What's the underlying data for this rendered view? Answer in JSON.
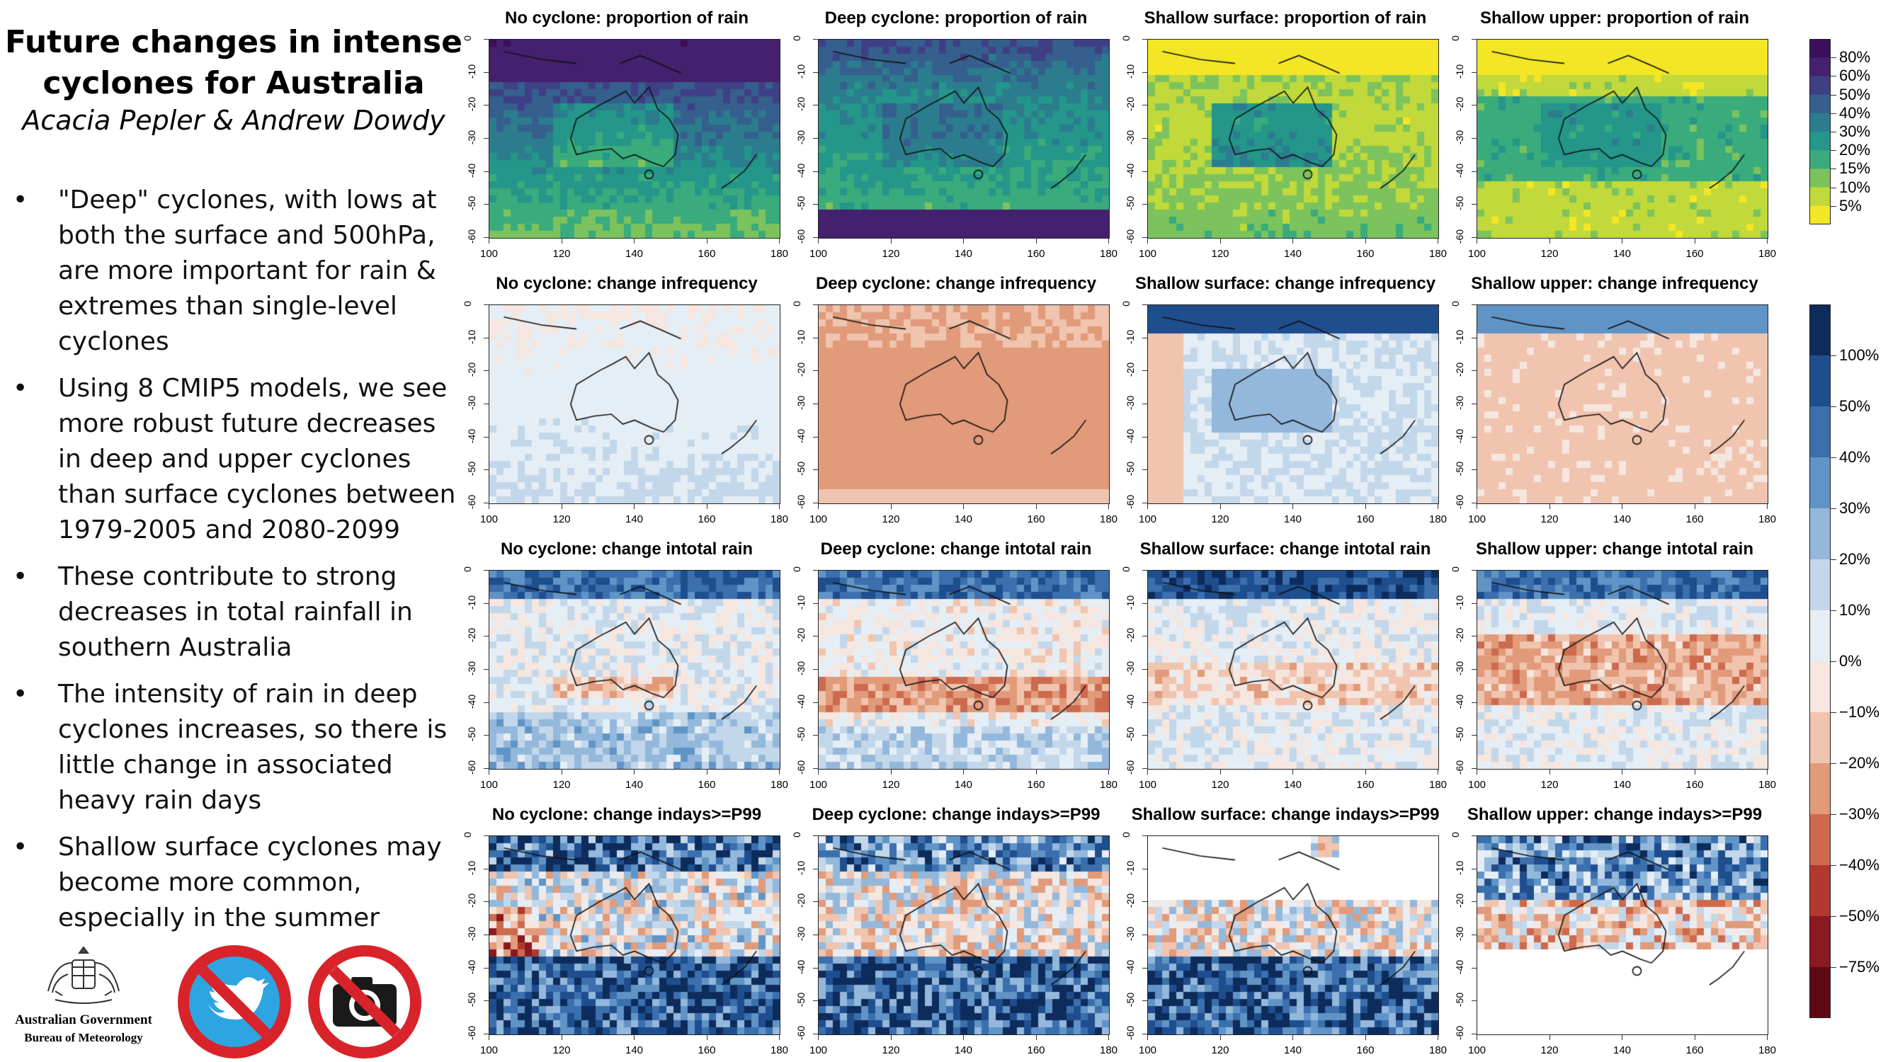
{
  "header": {
    "title_line1": "Future changes in intense",
    "title_line2": "cyclones for Australia",
    "authors": "Acacia Pepler & Andrew Dowdy"
  },
  "bullets": [
    "\"Deep\" cyclones, with lows at both the surface and 500hPa, are more important for rain & extremes than single-level cyclones",
    "Using 8 CMIP5 models, we see more robust future decreases in deep and upper cyclones than surface cyclones between 1979-2005 and 2080-2099",
    "These contribute to strong decreases in total rainfall in southern Australia",
    "The intensity of rain in deep cyclones increases, so there is little change in associated heavy rain days",
    "Shallow surface cyclones may become more common, especially in the summer"
  ],
  "bullet_symbol": "•",
  "logos": {
    "government": "Australian Government",
    "bureau": "Bureau of Meteorology",
    "icons": [
      "coat-of-arms-icon",
      "no-twitter-icon",
      "no-camera-icon"
    ]
  },
  "panels": [
    {
      "title": "No cyclone: proportion of rain",
      "scheme": "prop",
      "variant": 0
    },
    {
      "title": "Deep cyclone: proportion of rain",
      "scheme": "prop",
      "variant": 1
    },
    {
      "title": "Shallow surface: proportion of rain",
      "scheme": "prop",
      "variant": 2
    },
    {
      "title": "Shallow upper: proportion of rain",
      "scheme": "prop",
      "variant": 3
    },
    {
      "title": "No cyclone: change infrequency",
      "scheme": "change",
      "variant": 4
    },
    {
      "title": "Deep cyclone: change infrequency",
      "scheme": "change",
      "variant": 5
    },
    {
      "title": "Shallow surface: change infrequency",
      "scheme": "change",
      "variant": 6
    },
    {
      "title": "Shallow upper: change infrequency",
      "scheme": "change",
      "variant": 7
    },
    {
      "title": "No cyclone: change intotal rain",
      "scheme": "change",
      "variant": 8
    },
    {
      "title": "Deep cyclone: change intotal rain",
      "scheme": "change",
      "variant": 9
    },
    {
      "title": "Shallow surface: change intotal rain",
      "scheme": "change",
      "variant": 10
    },
    {
      "title": "Shallow upper: change intotal rain",
      "scheme": "change",
      "variant": 11
    },
    {
      "title": "No cyclone: change indays>=P99",
      "scheme": "change",
      "variant": 12
    },
    {
      "title": "Deep cyclone: change indays>=P99",
      "scheme": "change",
      "variant": 13
    },
    {
      "title": "Shallow surface: change indays>=P99",
      "scheme": "change",
      "variant": 14
    },
    {
      "title": "Shallow upper: change indays>=P99",
      "scheme": "change",
      "variant": 15
    }
  ],
  "axes": {
    "x_ticks": [
      "100",
      "120",
      "140",
      "160",
      "180"
    ],
    "y_ticks": [
      "0",
      "-10",
      "-20",
      "-30",
      "-40",
      "-50",
      "-60"
    ]
  },
  "legend_proportion": {
    "labels": [
      "80%",
      "60%",
      "50%",
      "40%",
      "30%",
      "20%",
      "15%",
      "10%",
      "5%"
    ],
    "colors": [
      "#3b0f5a",
      "#45206f",
      "#3f3f86",
      "#355f8d",
      "#2b7d8e",
      "#24968a",
      "#3aab7c",
      "#7cc35d",
      "#c1d93a",
      "#f3e625"
    ]
  },
  "legend_change": {
    "labels": [
      "100%",
      "50%",
      "40%",
      "30%",
      "20%",
      "10%",
      "0%",
      "−10%",
      "−20%",
      "−30%",
      "−40%",
      "−50%",
      "−75%"
    ],
    "colors": [
      "#0d2c5c",
      "#1f4e8f",
      "#3b6fae",
      "#6194c6",
      "#93b8db",
      "#c3d7ea",
      "#e6eef5",
      "#f5e6df",
      "#f0c4ae",
      "#e19a7a",
      "#cd6a4e",
      "#b03a2e",
      "#8a1a1f",
      "#5e0a16"
    ]
  }
}
